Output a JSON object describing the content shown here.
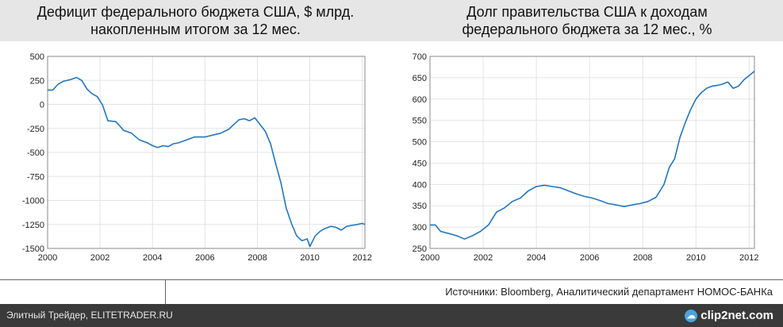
{
  "titles": {
    "left_line1": "Дефицит федерального бюджета США, $ млрд.",
    "left_line2": "накопленным итогом за 12 мес.",
    "right_line1": "Долг правительства США к доходам",
    "right_line2": "федерального бюджета за 12 мес., %"
  },
  "source": "Источники: Bloomberg, Аналитический департамент НОМОС-БАНКа",
  "footer": {
    "text": "Элитный Трейдер, ELITETRADER.RU",
    "logo": "clip2net.com",
    "logo_icon": "cloud-icon"
  },
  "colors": {
    "line": "#1f77c4",
    "title_band": "#e6e6e6",
    "footer_bg": "#3a3a3a"
  },
  "chart_data": [
    {
      "type": "line",
      "title": "Дефицит федерального бюджета США, $ млрд. накопленным итогом за 12 мес.",
      "xlim": [
        2000,
        2012.1
      ],
      "ylim": [
        -1500,
        500
      ],
      "xticks": [
        2000,
        2002,
        2004,
        2006,
        2008,
        2010,
        2012
      ],
      "yticks": [
        500,
        250,
        0,
        -250,
        -500,
        -750,
        -1000,
        -1250,
        -1500
      ],
      "grid": true,
      "series": [
        {
          "x": [
            2000.0,
            2000.2,
            2000.4,
            2000.6,
            2000.9,
            2001.1,
            2001.3,
            2001.5,
            2001.7,
            2001.9,
            2002.1,
            2002.3,
            2002.6,
            2002.9,
            2003.2,
            2003.5,
            2003.8,
            2004.0,
            2004.2,
            2004.4,
            2004.6,
            2004.8,
            2005.0,
            2005.3,
            2005.6,
            2006.0,
            2006.3,
            2006.6,
            2006.9,
            2007.1,
            2007.3,
            2007.5,
            2007.7,
            2007.9,
            2008.1,
            2008.3,
            2008.5,
            2008.7,
            2008.9,
            2009.1,
            2009.3,
            2009.5,
            2009.7,
            2009.9,
            2010.0,
            2010.2,
            2010.4,
            2010.6,
            2010.8,
            2011.0,
            2011.2,
            2011.4,
            2011.6,
            2011.8,
            2012.0,
            2012.1
          ],
          "values": [
            150,
            150,
            210,
            240,
            260,
            280,
            250,
            160,
            110,
            80,
            -10,
            -170,
            -180,
            -270,
            -300,
            -370,
            -400,
            -430,
            -450,
            -430,
            -440,
            -410,
            -400,
            -370,
            -340,
            -340,
            -320,
            -300,
            -260,
            -210,
            -160,
            -150,
            -170,
            -140,
            -210,
            -280,
            -410,
            -620,
            -820,
            -1080,
            -1240,
            -1370,
            -1420,
            -1400,
            -1480,
            -1370,
            -1320,
            -1290,
            -1270,
            -1280,
            -1310,
            -1270,
            -1260,
            -1250,
            -1240,
            -1250
          ]
        }
      ]
    },
    {
      "type": "line",
      "title": "Долг правительства США к доходам федерального бюджета за 12 мес., %",
      "xlim": [
        2000,
        2012.2
      ],
      "ylim": [
        250,
        700
      ],
      "xticks": [
        2000,
        2002,
        2004,
        2006,
        2008,
        2010,
        2012
      ],
      "yticks": [
        700,
        650,
        600,
        550,
        500,
        450,
        400,
        350,
        300,
        250
      ],
      "grid": true,
      "series": [
        {
          "x": [
            2000.0,
            2000.2,
            2000.4,
            2000.7,
            2001.0,
            2001.3,
            2001.6,
            2001.9,
            2002.2,
            2002.5,
            2002.8,
            2003.1,
            2003.4,
            2003.7,
            2004.0,
            2004.3,
            2004.6,
            2004.9,
            2005.2,
            2005.5,
            2005.8,
            2006.1,
            2006.4,
            2006.7,
            2007.0,
            2007.3,
            2007.6,
            2007.9,
            2008.2,
            2008.5,
            2008.8,
            2009.0,
            2009.2,
            2009.4,
            2009.6,
            2009.8,
            2010.0,
            2010.2,
            2010.4,
            2010.6,
            2010.8,
            2011.0,
            2011.2,
            2011.4,
            2011.6,
            2011.8,
            2012.0,
            2012.2
          ],
          "values": [
            305,
            305,
            290,
            285,
            280,
            272,
            280,
            290,
            305,
            335,
            345,
            360,
            368,
            385,
            395,
            398,
            395,
            392,
            385,
            378,
            372,
            368,
            362,
            355,
            352,
            348,
            352,
            355,
            360,
            370,
            400,
            440,
            460,
            510,
            545,
            575,
            600,
            615,
            625,
            630,
            632,
            635,
            640,
            625,
            630,
            645,
            655,
            665
          ]
        }
      ]
    }
  ]
}
